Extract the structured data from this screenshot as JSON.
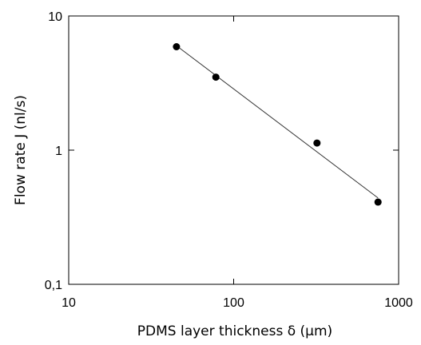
{
  "chart_data": {
    "type": "scatter",
    "title": "",
    "xlabel": "PDMS layer thickness δ (μm)",
    "ylabel": "Flow rate J (nl/s)",
    "xscale": "log",
    "yscale": "log",
    "xlim": [
      10,
      1000
    ],
    "ylim": [
      0.1,
      10
    ],
    "x_ticks": [
      {
        "value": 10,
        "label": "10"
      },
      {
        "value": 100,
        "label": "100"
      },
      {
        "value": 1000,
        "label": "1000"
      }
    ],
    "y_ticks": [
      {
        "value": 0.1,
        "label": "0,1"
      },
      {
        "value": 1,
        "label": "1"
      },
      {
        "value": 10,
        "label": "10"
      }
    ],
    "grid": false,
    "legend": "none",
    "series": [
      {
        "points": [
          {
            "x": 45,
            "y": 5.9
          },
          {
            "x": 78,
            "y": 3.5
          },
          {
            "x": 320,
            "y": 1.13
          },
          {
            "x": 750,
            "y": 0.41
          }
        ]
      }
    ],
    "fit_line": {
      "x": [
        45,
        750
      ],
      "y": [
        6.0,
        0.44
      ]
    },
    "colors": {
      "marker": "#000000",
      "line": "#333333",
      "frame": "#000000"
    }
  }
}
